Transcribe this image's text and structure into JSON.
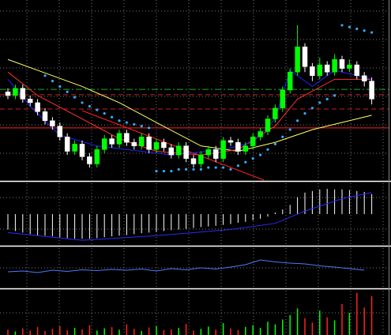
{
  "chart_data": {
    "type": "candlestick",
    "ylim": [
      0,
      100
    ],
    "up_color": "#00ff00",
    "down_color": "#ffffff",
    "open": [
      49,
      47,
      51,
      45,
      43,
      38,
      33,
      30,
      24,
      16,
      20,
      13,
      9,
      17,
      23,
      20,
      26,
      21,
      19,
      24,
      17,
      21,
      18,
      14,
      19,
      12,
      9,
      14,
      17,
      12,
      22,
      21,
      16,
      19,
      24,
      27,
      34,
      40,
      50,
      60,
      74,
      63,
      58,
      64,
      60,
      67,
      62,
      64,
      58,
      55
    ],
    "high": [
      51,
      53,
      53,
      47,
      45,
      40,
      35,
      32,
      26,
      22,
      22,
      15,
      19,
      25,
      25,
      28,
      28,
      23,
      26,
      26,
      23,
      23,
      20,
      21,
      21,
      14,
      16,
      19,
      19,
      24,
      24,
      23,
      21,
      26,
      29,
      36,
      42,
      52,
      62,
      86,
      76,
      65,
      68,
      66,
      70,
      69,
      67,
      66,
      60,
      57
    ],
    "low": [
      45,
      45,
      43,
      41,
      36,
      31,
      28,
      22,
      14,
      14,
      11,
      7,
      7,
      15,
      18,
      18,
      19,
      17,
      17,
      15,
      15,
      16,
      12,
      12,
      10,
      7,
      7,
      12,
      10,
      10,
      19,
      14,
      14,
      17,
      22,
      25,
      32,
      38,
      48,
      58,
      60,
      55,
      56,
      58,
      58,
      60,
      60,
      56,
      52,
      42
    ],
    "close": [
      47,
      51,
      45,
      43,
      38,
      33,
      30,
      24,
      16,
      20,
      13,
      9,
      17,
      23,
      20,
      26,
      21,
      19,
      24,
      17,
      21,
      18,
      14,
      19,
      12,
      9,
      14,
      17,
      12,
      22,
      21,
      16,
      19,
      24,
      27,
      34,
      40,
      50,
      60,
      74,
      63,
      58,
      64,
      60,
      67,
      62,
      64,
      58,
      55,
      45
    ],
    "overlays": [
      {
        "color": "#ffff66",
        "x": [
          0,
          4,
          10,
          15,
          20,
          26,
          31,
          36,
          41,
          49
        ],
        "values": [
          67,
          61,
          52,
          43,
          32,
          19,
          16,
          21,
          28,
          36
        ]
      },
      {
        "color": "#ff3030",
        "x": [
          0,
          4,
          10,
          15,
          20,
          26,
          31,
          36,
          39,
          44,
          49
        ],
        "values": [
          60,
          47,
          34,
          23,
          16,
          14,
          17,
          30,
          45,
          56,
          56
        ]
      },
      {
        "color": "#2020ff",
        "x": [
          0,
          3,
          7,
          12,
          16,
          22,
          29,
          33,
          36,
          38,
          41,
          44,
          49
        ],
        "values": [
          56,
          41,
          25,
          19,
          17,
          14,
          17,
          21,
          34,
          61,
          52,
          61,
          56
        ]
      }
    ],
    "sar_color": "#33aaff",
    "sar_x": [
      5,
      6,
      7,
      8,
      9,
      10,
      11,
      12,
      13,
      14,
      15,
      16,
      17,
      18,
      19,
      20,
      21,
      22,
      23,
      24,
      25,
      26,
      27,
      28,
      29,
      30,
      31,
      32,
      33,
      34,
      35,
      36,
      37,
      38,
      39,
      40,
      41,
      42,
      43,
      44,
      45,
      46,
      47,
      48,
      49
    ],
    "sar": [
      58,
      55,
      52,
      49,
      46,
      43,
      41,
      39,
      37,
      35,
      33,
      32,
      31,
      30,
      29,
      5,
      5,
      5,
      6,
      6,
      6,
      6,
      7,
      7,
      7,
      6,
      8,
      10,
      12,
      14,
      17,
      20,
      24,
      28,
      33,
      37,
      40,
      43,
      45,
      47,
      86,
      85,
      84,
      83,
      82
    ],
    "levels": [
      {
        "value": 50.4,
        "color": "#22aa22",
        "dash": "8,3,2,3"
      },
      {
        "value": 47.4,
        "color": "#cc2020",
        "dash": "6,4"
      },
      {
        "value": 39.5,
        "color": "#cc2020",
        "dash": "6,4"
      },
      {
        "value": 29,
        "color": "#ff2020",
        "dash": "none"
      }
    ],
    "trendline": {
      "color": "#ff2020",
      "x": [
        10,
        34.5
      ],
      "values": [
        38.6,
        0
      ]
    },
    "hist_ylim": [
      -1,
      1
    ],
    "hist_color": "#ffffff",
    "hist": [
      -0.5,
      -0.55,
      -0.6,
      -0.65,
      -0.7,
      -0.7,
      -0.72,
      -0.75,
      -0.78,
      -0.8,
      -0.8,
      -0.8,
      -0.78,
      -0.75,
      -0.72,
      -0.7,
      -0.68,
      -0.65,
      -0.62,
      -0.6,
      -0.58,
      -0.55,
      -0.52,
      -0.5,
      -0.48,
      -0.45,
      -0.42,
      -0.4,
      -0.38,
      -0.35,
      -0.32,
      -0.28,
      -0.25,
      -0.2,
      -0.15,
      -0.08,
      0.05,
      0.15,
      0.3,
      0.55,
      0.7,
      0.75,
      0.8,
      0.82,
      0.8,
      0.8,
      0.78,
      0.75,
      0.72,
      0.65
    ],
    "hist_line": {
      "color": "#2a2aff",
      "x": [
        0,
        10,
        20,
        30,
        36,
        40,
        45,
        49
      ],
      "values": [
        -0.6,
        -0.85,
        -0.7,
        -0.5,
        -0.3,
        0.1,
        0.5,
        0.7
      ]
    },
    "osc_ylim": [
      0,
      100
    ],
    "osc": {
      "color": "#4a7aff",
      "x": [
        0,
        2,
        4,
        6,
        8,
        10,
        12,
        14,
        16,
        18,
        20,
        22,
        24,
        26,
        28,
        30,
        32,
        34,
        36,
        38,
        40,
        42,
        44,
        46,
        48
      ],
      "values": [
        40,
        42,
        38,
        44,
        41,
        45,
        43,
        46,
        44,
        47,
        42,
        48,
        45,
        50,
        47,
        52,
        58,
        70,
        65,
        62,
        60,
        55,
        52,
        48,
        44
      ]
    },
    "volume_ylim": [
      0,
      100
    ],
    "volume_up_color": "#00ff00",
    "volume_down_color": "#ff2020",
    "volume": [
      12,
      8,
      15,
      10,
      18,
      9,
      14,
      20,
      11,
      16,
      13,
      22,
      10,
      15,
      18,
      12,
      24,
      14,
      9,
      17,
      20,
      11,
      13,
      16,
      25,
      10,
      14,
      19,
      12,
      27,
      15,
      11,
      18,
      22,
      16,
      30,
      24,
      35,
      45,
      60,
      38,
      28,
      55,
      40,
      33,
      70,
      50,
      95,
      62,
      88
    ]
  }
}
